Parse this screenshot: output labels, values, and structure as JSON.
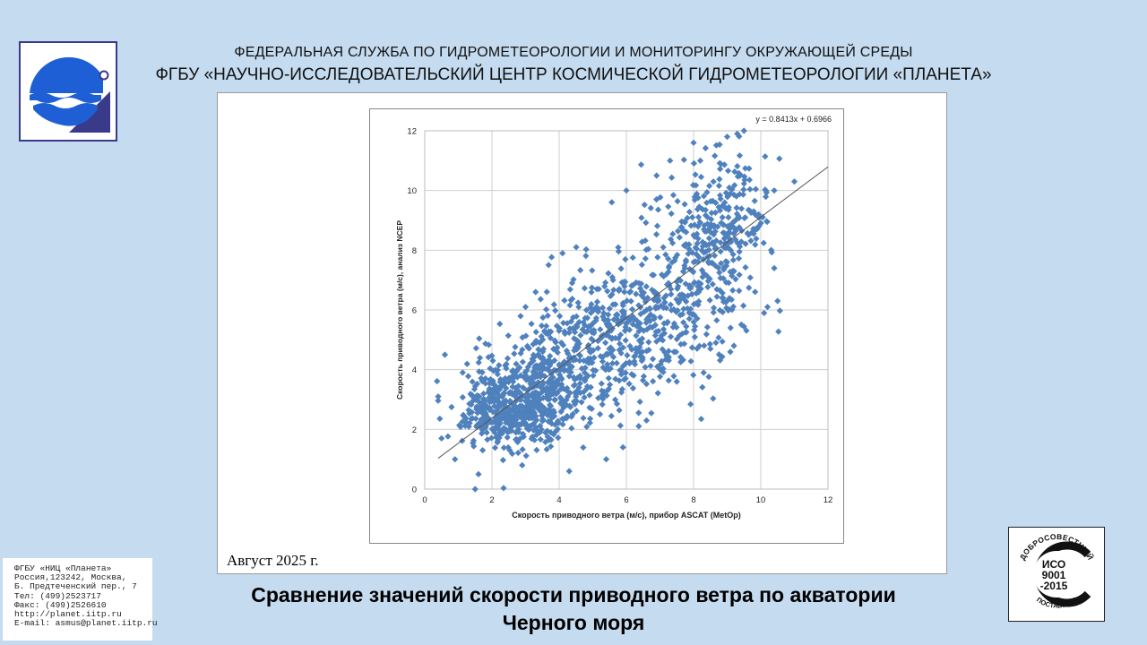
{
  "header": {
    "line1": "ФЕДЕРАЛЬНАЯ СЛУЖБА ПО ГИДРОМЕТЕОРОЛОГИИ И МОНИТОРИНГУ ОКРУЖАЮЩЕЙ СРЕДЫ",
    "line2": "ФГБУ «НАУЧНО-ИССЛЕДОВАТЕЛЬСКИЙ ЦЕНТР КОСМИЧЕСКОЙ ГИДРОМЕТЕОРОЛОГИИ «ПЛАНЕТА»"
  },
  "date_label": "Август 2025 г.",
  "caption": {
    "line1": "Сравнение значений скорости приводного ветра по акватории",
    "line2": "Черного моря"
  },
  "address": [
    "ФГБУ «НИЦ «Планета»",
    "Россия,123242, Москва,",
    "Б. Предтеченский пер., 7",
    "Тел:   (499)2523717",
    "Факс: (499)2526610",
    "http://planet.iitp.ru",
    "E-mail: asmus@planet.iitp.ru"
  ],
  "iso_badge": {
    "top_text": "ДОБРОСОВЕСТНЫЙ",
    "line1": "ИСО",
    "line2": "9001",
    "line3": "-2015",
    "bottom_text": "ПОСТАВЩИК"
  },
  "colors": {
    "background": "#c5dbf0",
    "marker": "#4f81bd",
    "logo_blue": "#1f5fd6",
    "logo_frame": "#3a3a8a"
  },
  "icons": {
    "logo": "planeta-logo-icon",
    "iso": "iso-certificate-icon"
  },
  "chart_data": {
    "type": "scatter",
    "xlabel": "Скорость приводного ветра (м/с), прибор ASCAT (MetOp)",
    "ylabel": "Скорость приводного ветра (м/с), анализ NCEP",
    "xlim": [
      0,
      12
    ],
    "ylim": [
      0,
      12
    ],
    "xticks": [
      0,
      2,
      4,
      6,
      8,
      10,
      12
    ],
    "yticks": [
      0,
      2,
      4,
      6,
      8,
      10,
      12
    ],
    "grid": true,
    "marker": "diamond",
    "trendline": {
      "equation": "y = 0.8413x + 0.6966",
      "slope": 0.8413,
      "intercept": 0.6966,
      "x_range": [
        0.4,
        12
      ]
    },
    "clusters": [
      {
        "cx": 2.6,
        "cy": 2.7,
        "sx": 0.8,
        "sy": 0.75,
        "n": 520
      },
      {
        "cx": 4.2,
        "cy": 3.9,
        "sx": 0.9,
        "sy": 0.9,
        "n": 320
      },
      {
        "cx": 6.3,
        "cy": 5.8,
        "sx": 1.0,
        "sy": 1.3,
        "n": 240
      },
      {
        "cx": 8.4,
        "cy": 8.0,
        "sx": 0.9,
        "sy": 1.3,
        "n": 240
      },
      {
        "cx": 9.3,
        "cy": 9.4,
        "sx": 0.7,
        "sy": 1.0,
        "n": 120
      },
      {
        "cx": 5.0,
        "cy": 5.6,
        "sx": 0.9,
        "sy": 1.0,
        "n": 80
      },
      {
        "cx": 7.8,
        "cy": 5.6,
        "sx": 0.8,
        "sy": 1.1,
        "n": 70
      }
    ],
    "points": [
      [
        1.5,
        0.0
      ],
      [
        1.6,
        0.5
      ],
      [
        0.9,
        1.0
      ],
      [
        0.5,
        1.7
      ],
      [
        0.4,
        3.1
      ],
      [
        0.6,
        4.5
      ],
      [
        3.3,
        6.6
      ],
      [
        3.0,
        6.1
      ],
      [
        4.1,
        7.9
      ],
      [
        6.0,
        10.0
      ],
      [
        6.9,
        10.5
      ],
      [
        7.3,
        11.0
      ],
      [
        8.0,
        11.6
      ],
      [
        8.2,
        11.0
      ],
      [
        9.3,
        11.9
      ],
      [
        9.5,
        12.0
      ],
      [
        9.0,
        11.8
      ],
      [
        10.4,
        10.0
      ],
      [
        11.0,
        10.3
      ],
      [
        10.2,
        6.1
      ],
      [
        10.5,
        6.3
      ],
      [
        7.5,
        3.6
      ],
      [
        8.3,
        3.9
      ],
      [
        8.5,
        4.7
      ],
      [
        9.2,
        4.8
      ],
      [
        5.9,
        1.4
      ],
      [
        5.4,
        1.0
      ],
      [
        4.3,
        0.6
      ],
      [
        2.9,
        0.8
      ],
      [
        6.6,
        2.3
      ],
      [
        10.4,
        7.4
      ],
      [
        9.1,
        5.4
      ]
    ]
  }
}
